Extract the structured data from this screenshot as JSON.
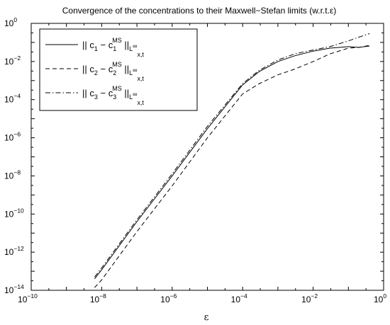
{
  "chart_data": {
    "type": "line",
    "title": "Convergence of the concentrations to their Maxwell−Stefan limits (w.r.t.ε)",
    "xlabel": "ε",
    "ylabel": "",
    "xscale": "log",
    "yscale": "log",
    "xlim": [
      1e-10,
      1
    ],
    "ylim": [
      1e-14,
      1
    ],
    "grid": false,
    "legend_position": "top-left",
    "x_ticks": [
      {
        "base": "10",
        "exp": "−10",
        "value": 1e-10
      },
      {
        "base": "10",
        "exp": "−8",
        "value": 1e-08
      },
      {
        "base": "10",
        "exp": "−6",
        "value": 1e-06
      },
      {
        "base": "10",
        "exp": "−4",
        "value": 0.0001
      },
      {
        "base": "10",
        "exp": "−2",
        "value": 0.01
      },
      {
        "base": "10",
        "exp": "0",
        "value": 1
      }
    ],
    "y_ticks": [
      {
        "base": "10",
        "exp": "0",
        "value": 1
      },
      {
        "base": "10",
        "exp": "−2",
        "value": 0.01
      },
      {
        "base": "10",
        "exp": "−4",
        "value": 0.0001
      },
      {
        "base": "10",
        "exp": "−6",
        "value": 1e-06
      },
      {
        "base": "10",
        "exp": "−8",
        "value": 1e-08
      },
      {
        "base": "10",
        "exp": "−10",
        "value": 1e-10
      },
      {
        "base": "10",
        "exp": "−12",
        "value": 1e-12
      },
      {
        "base": "10",
        "exp": "−14",
        "value": 1e-14
      }
    ],
    "series": [
      {
        "label": "|| c_1 − c_1^MS ||_L∞_x,t",
        "dash": "solid",
        "x": [
          6.3e-09,
          1e-08,
          1e-07,
          1e-06,
          1e-05,
          0.0001,
          0.0003,
          0.001,
          0.003,
          0.01,
          0.03,
          0.1,
          0.2,
          0.4
        ],
        "y": [
          4e-14,
          1.2e-13,
          4e-11,
          1e-08,
          3e-06,
          0.0006,
          0.003,
          0.01,
          0.02,
          0.035,
          0.05,
          0.06,
          0.055,
          0.065
        ]
      },
      {
        "label": "|| c_2 − c_2^MS ||_L∞_x,t",
        "dash": "dashed",
        "x": [
          6.3e-09,
          1e-08,
          1e-07,
          1e-06,
          1e-05,
          0.0001,
          0.0003,
          0.001,
          0.003,
          0.01,
          0.03,
          0.1,
          0.2,
          0.4
        ],
        "y": [
          1.4e-14,
          3.5e-14,
          1.2e-11,
          3e-09,
          1e-06,
          0.0002,
          0.0007,
          0.002,
          0.004,
          0.01,
          0.025,
          0.05,
          0.055,
          0.07
        ]
      },
      {
        "label": "|| c_3 − c_3^MS ||_L∞_x,t",
        "dash": "dashdot",
        "x": [
          6.3e-09,
          1e-08,
          1e-07,
          1e-06,
          1e-05,
          0.0001,
          0.0003,
          0.001,
          0.003,
          0.01,
          0.03,
          0.1,
          0.2,
          0.4
        ],
        "y": [
          5e-14,
          1.5e-13,
          5e-11,
          1.3e-08,
          4e-06,
          0.0007,
          0.0035,
          0.012,
          0.025,
          0.04,
          0.06,
          0.12,
          0.19,
          0.29
        ]
      }
    ],
    "legend": [
      {
        "c": "c",
        "i": "1",
        "ms": "MS",
        "norm": "L",
        "inf": "∞",
        "sub": "x,t"
      },
      {
        "c": "c",
        "i": "2",
        "ms": "MS",
        "norm": "L",
        "inf": "∞",
        "sub": "x,t"
      },
      {
        "c": "c",
        "i": "3",
        "ms": "MS",
        "norm": "L",
        "inf": "∞",
        "sub": "x,t"
      }
    ]
  }
}
